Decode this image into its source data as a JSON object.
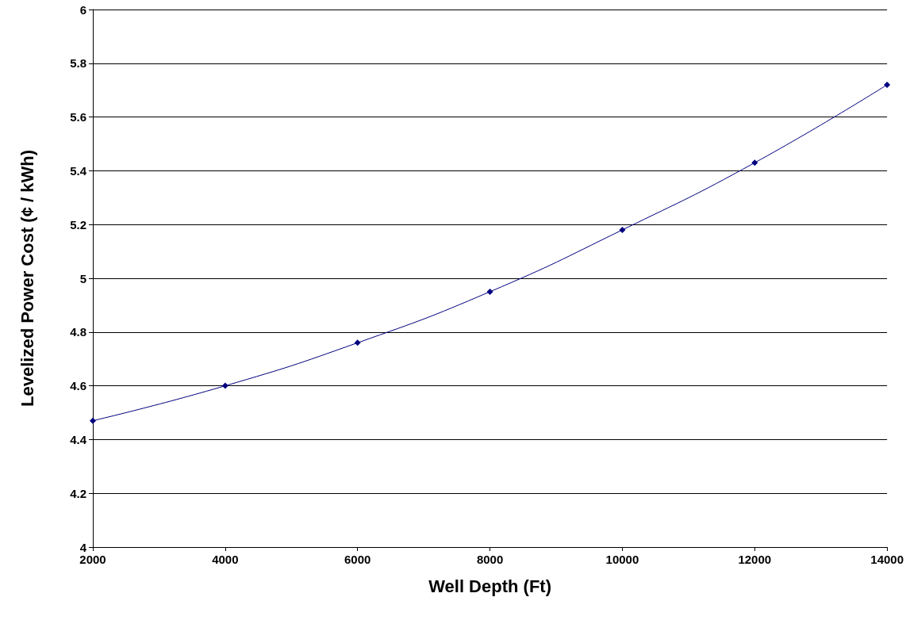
{
  "chart_data": {
    "type": "line",
    "xlabel": "Well Depth (Ft)",
    "ylabel": "Levelized Power Cost (¢ / kWh)",
    "x": [
      2000,
      4000,
      6000,
      8000,
      10000,
      12000,
      14000
    ],
    "series": [
      {
        "color": "#000080",
        "values": [
          4.47,
          4.6,
          4.76,
          4.95,
          5.18,
          5.43,
          5.72
        ]
      }
    ],
    "xlim": [
      2000,
      14000
    ],
    "xticks": [
      2000,
      4000,
      6000,
      8000,
      10000,
      12000,
      14000
    ],
    "ylim": [
      4,
      6
    ],
    "yticks": [
      4,
      4.2,
      4.4,
      4.6,
      4.8,
      5,
      5.2,
      5.4,
      5.6,
      5.8,
      6
    ],
    "grid": "y",
    "marker": "diamond",
    "line_style": "solid"
  }
}
